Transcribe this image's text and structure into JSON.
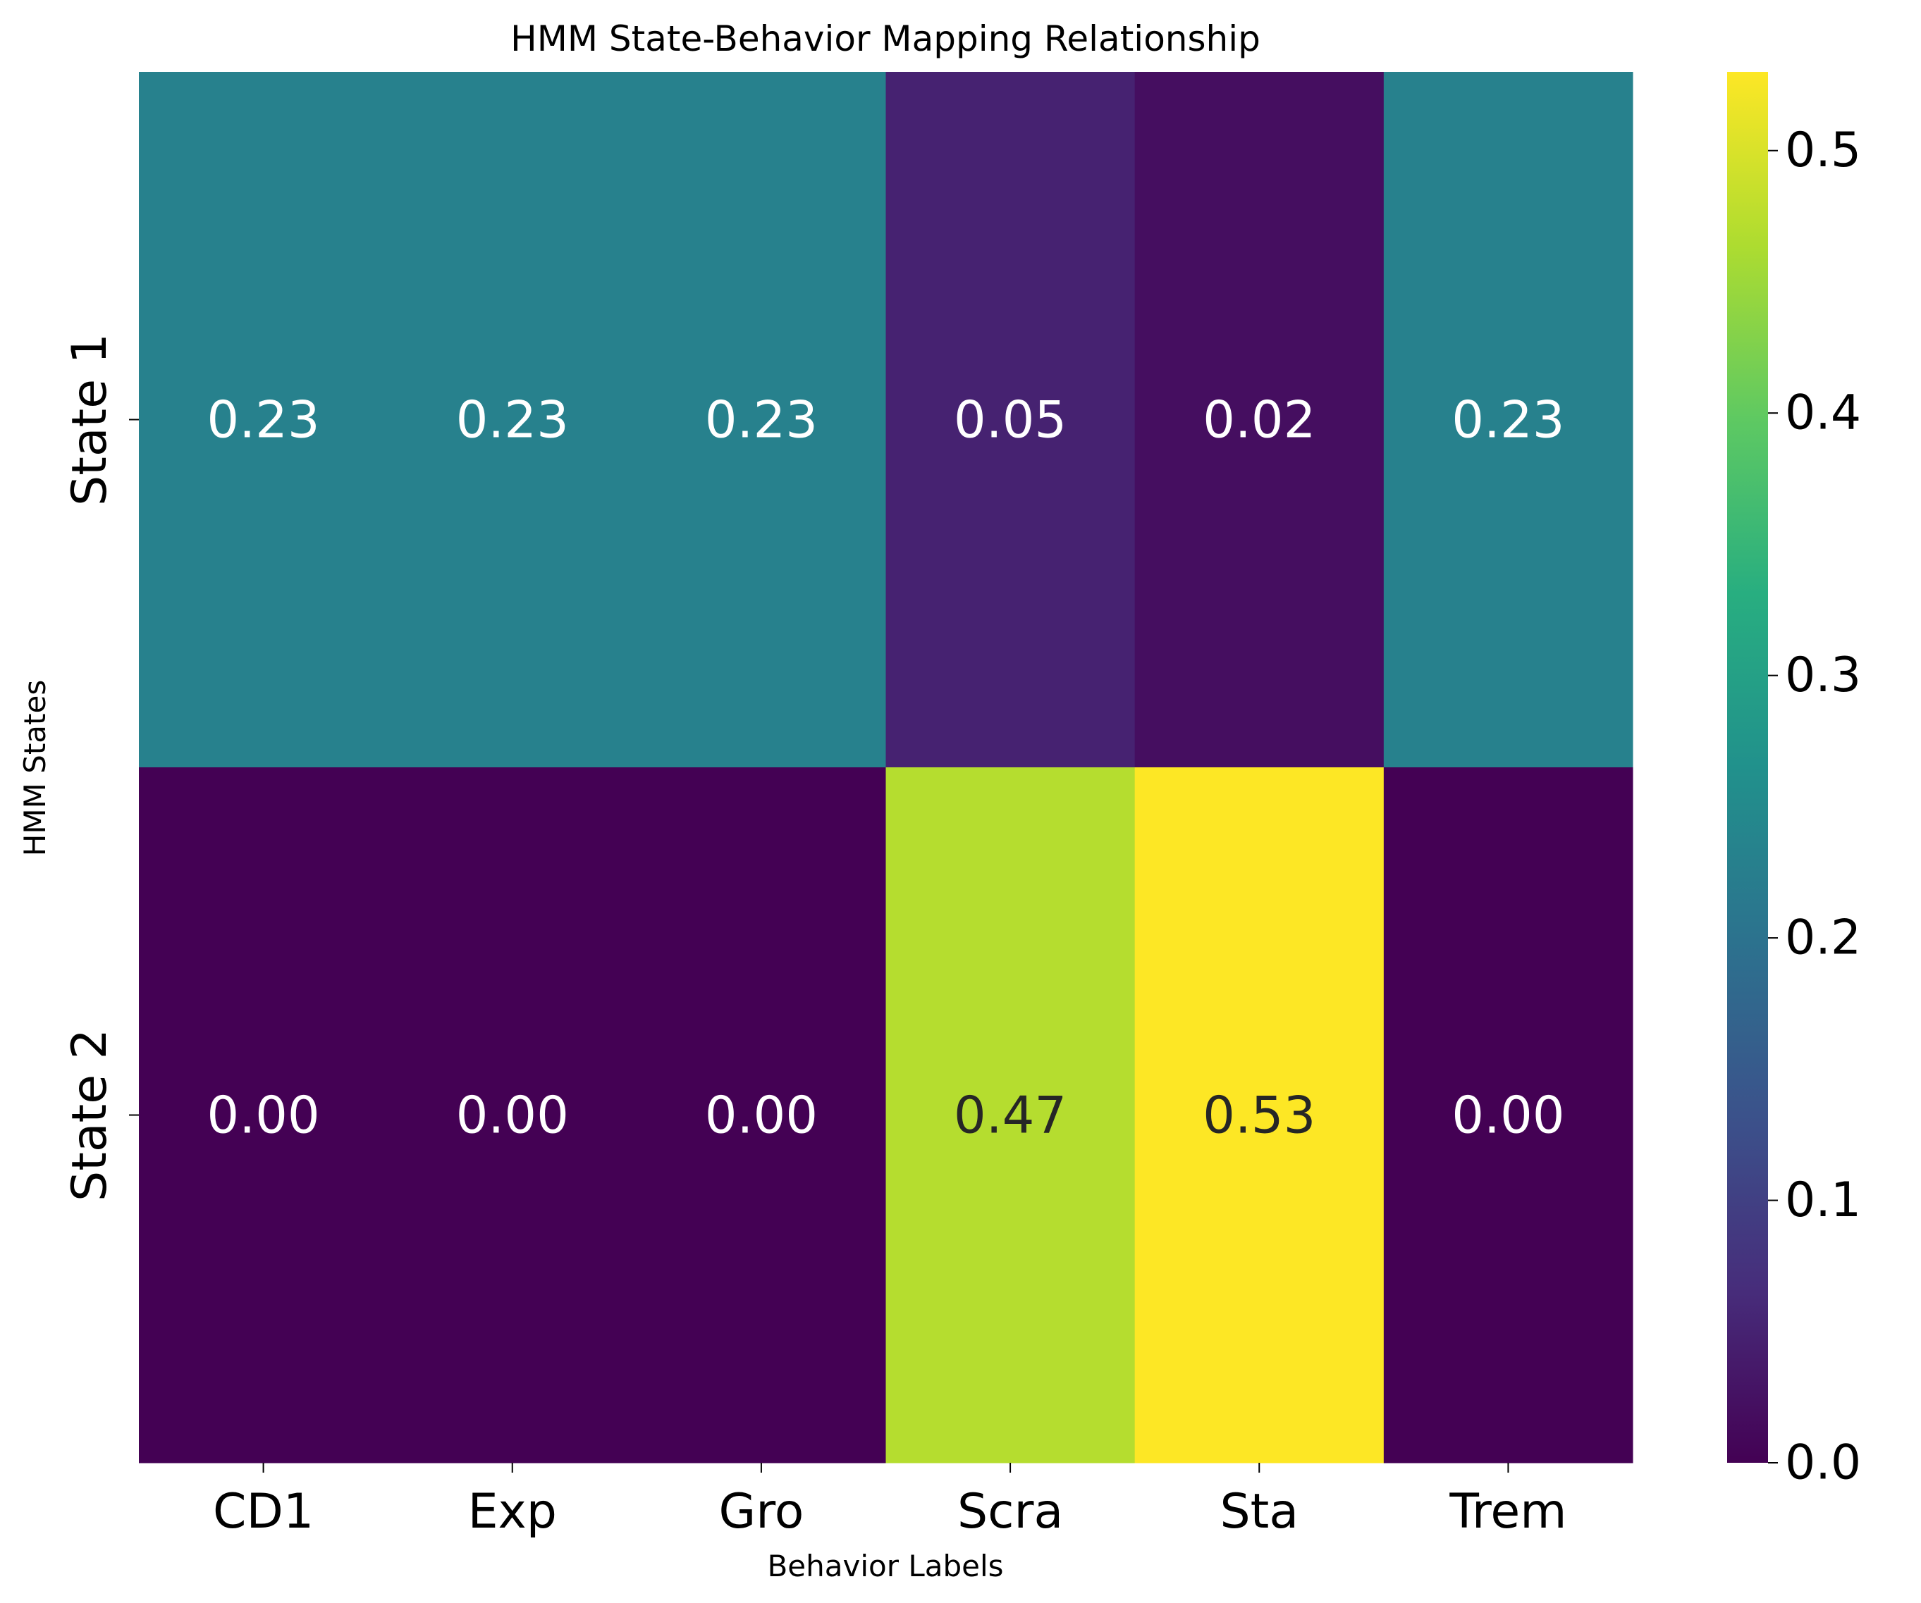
{
  "chart_data": {
    "type": "heatmap",
    "title": "HMM State-Behavior Mapping Relationship",
    "xlabel": "Behavior Labels",
    "ylabel": "HMM States",
    "x_categories": [
      "CD1",
      "Exp",
      "Gro",
      "Scra",
      "Sta",
      "Trem"
    ],
    "y_categories": [
      "State 1",
      "State 2"
    ],
    "values": [
      [
        0.23,
        0.23,
        0.23,
        0.05,
        0.02,
        0.23
      ],
      [
        0.0,
        0.0,
        0.0,
        0.47,
        0.53,
        0.0
      ]
    ],
    "annotations": [
      [
        "0.23",
        "0.23",
        "0.23",
        "0.05",
        "0.02",
        "0.23"
      ],
      [
        "0.00",
        "0.00",
        "0.00",
        "0.47",
        "0.53",
        "0.00"
      ]
    ],
    "colormap": "viridis",
    "colorbar": {
      "range": [
        0,
        0.53
      ],
      "ticks": [
        0.0,
        0.1,
        0.2,
        0.3,
        0.4,
        0.5
      ],
      "tick_labels": [
        "0.0",
        "0.1",
        "0.2",
        "0.3",
        "0.4",
        "0.5"
      ]
    },
    "annotation_colors": {
      "light": "#ffffff",
      "dark": "#262626"
    }
  }
}
